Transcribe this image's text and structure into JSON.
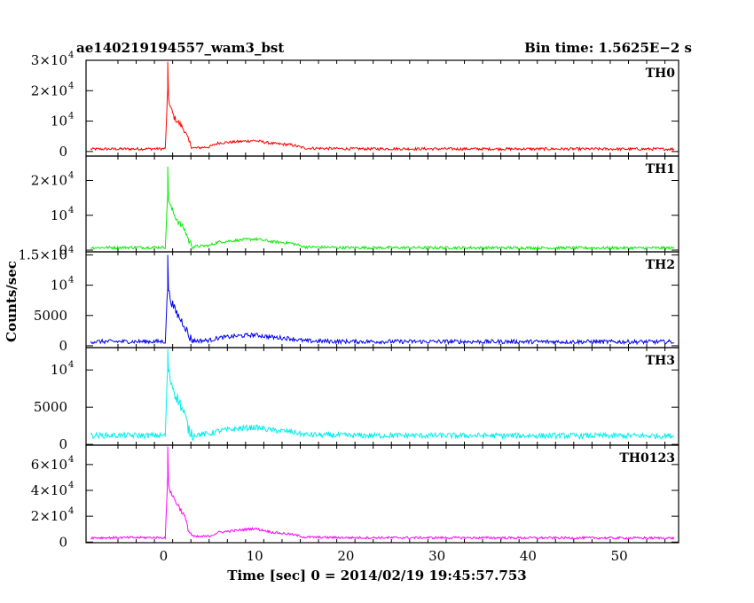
{
  "header": {
    "title": "ae140219194557_wam3_bst",
    "bin_time": "Bin time: 1.5625E−2 s"
  },
  "axes": {
    "xlabel": "Time [sec] 0 = 2014/02/19 19:45:57.753",
    "ylabel": "Counts/sec"
  },
  "chart_data": {
    "type": "line",
    "title": "ae140219194557_wam3_bst",
    "xlabel": "Time [sec] 0 = 2014/02/19 19:45:57.753",
    "ylabel": "Counts/sec",
    "xlim": [
      -8.5,
      56.5
    ],
    "x_ticks": [
      0,
      10,
      20,
      30,
      40,
      50
    ],
    "bin_time_s": 0.015625,
    "data_range": [
      -8,
      56
    ],
    "panels": [
      {
        "name": "TH0",
        "color": "#ff0000",
        "ylim": [
          -1500,
          30000
        ],
        "ticks": [
          {
            "v": 0,
            "m": "0"
          },
          {
            "v": 10000,
            "m": "10",
            "e": "4"
          },
          {
            "v": 20000,
            "m": "2×10",
            "e": "4"
          },
          {
            "v": 30000,
            "m": "3×10",
            "e": "4"
          }
        ],
        "profile": [
          [
            -8,
            800
          ],
          [
            0.2,
            900
          ],
          [
            0.45,
            20000
          ],
          [
            0.7,
            15000
          ],
          [
            1.2,
            11000
          ],
          [
            1.8,
            9000
          ],
          [
            2.3,
            7000
          ],
          [
            2.8,
            3000
          ],
          [
            3.3,
            1100
          ],
          [
            5,
            1500
          ],
          [
            6,
            2800
          ],
          [
            8,
            3200
          ],
          [
            10,
            3600
          ],
          [
            12,
            2600
          ],
          [
            14,
            2200
          ],
          [
            15.5,
            1100
          ],
          [
            20,
            900
          ],
          [
            56,
            800
          ]
        ],
        "noise": 900,
        "peak": [
          0.5,
          29500
        ]
      },
      {
        "name": "TH1",
        "color": "#00ee00",
        "ylim": [
          -500,
          27000
        ],
        "ticks": [
          {
            "v": 0,
            "m": "0"
          },
          {
            "v": 10000,
            "m": "10",
            "e": "4"
          },
          {
            "v": 20000,
            "m": "2×10",
            "e": "4"
          }
        ],
        "profile": [
          [
            -8,
            700
          ],
          [
            0.2,
            800
          ],
          [
            0.45,
            16000
          ],
          [
            0.7,
            13000
          ],
          [
            1.2,
            10000
          ],
          [
            1.8,
            7500
          ],
          [
            2.3,
            6000
          ],
          [
            2.8,
            2500
          ],
          [
            3.3,
            1000
          ],
          [
            5,
            1300
          ],
          [
            6,
            2300
          ],
          [
            8,
            2800
          ],
          [
            10,
            3200
          ],
          [
            12,
            2400
          ],
          [
            14,
            2000
          ],
          [
            15.5,
            900
          ],
          [
            20,
            700
          ],
          [
            56,
            600
          ]
        ],
        "noise": 800,
        "peak": [
          0.5,
          24000
        ]
      },
      {
        "name": "TH2",
        "color": "#0000ee",
        "ylim": [
          -300,
          15500
        ],
        "ticks": [
          {
            "v": 0,
            "m": "0"
          },
          {
            "v": 5000,
            "m": "5000"
          },
          {
            "v": 10000,
            "m": "10",
            "e": "4"
          },
          {
            "v": 15000,
            "m": "1.5×10",
            "e": "4"
          }
        ],
        "profile": [
          [
            -8,
            700
          ],
          [
            0.2,
            700
          ],
          [
            0.45,
            10000
          ],
          [
            0.7,
            8000
          ],
          [
            1.2,
            6000
          ],
          [
            1.8,
            4500
          ],
          [
            2.3,
            3500
          ],
          [
            2.8,
            1500
          ],
          [
            3.3,
            800
          ],
          [
            5,
            900
          ],
          [
            6,
            1300
          ],
          [
            8,
            1600
          ],
          [
            10,
            1800
          ],
          [
            12,
            1400
          ],
          [
            14,
            1200
          ],
          [
            15.5,
            800
          ],
          [
            20,
            700
          ],
          [
            56,
            650
          ]
        ],
        "noise": 700,
        "peak": [
          0.5,
          15000
        ]
      },
      {
        "name": "TH3",
        "color": "#00eeee",
        "ylim": [
          -100,
          13000
        ],
        "ticks": [
          {
            "v": 0,
            "m": "0"
          },
          {
            "v": 5000,
            "m": "5000"
          },
          {
            "v": 10000,
            "m": "10",
            "e": "4"
          }
        ],
        "profile": [
          [
            -8,
            1200
          ],
          [
            0.2,
            1200
          ],
          [
            0.45,
            10500
          ],
          [
            0.7,
            9000
          ],
          [
            1.2,
            7000
          ],
          [
            1.8,
            5500
          ],
          [
            2.3,
            4000
          ],
          [
            2.8,
            1800
          ],
          [
            3.3,
            1300
          ],
          [
            5,
            1400
          ],
          [
            6,
            1800
          ],
          [
            8,
            2100
          ],
          [
            10,
            2300
          ],
          [
            12,
            1900
          ],
          [
            14,
            1700
          ],
          [
            15.5,
            1300
          ],
          [
            20,
            1200
          ],
          [
            56,
            1150
          ]
        ],
        "noise": 750,
        "peak": [
          0.5,
          12800
        ]
      },
      {
        "name": "TH0123",
        "color": "#ff00ff",
        "ylim": [
          -500,
          75000
        ],
        "ticks": [
          {
            "v": 0,
            "m": "0"
          },
          {
            "v": 20000,
            "m": "2×10",
            "e": "4"
          },
          {
            "v": 40000,
            "m": "4×10",
            "e": "4"
          },
          {
            "v": 60000,
            "m": "6×10",
            "e": "4"
          }
        ],
        "profile": [
          [
            -8,
            3300
          ],
          [
            0.2,
            3500
          ],
          [
            0.45,
            50000
          ],
          [
            0.7,
            40000
          ],
          [
            1.2,
            33000
          ],
          [
            1.8,
            26000
          ],
          [
            2.3,
            20000
          ],
          [
            2.8,
            8000
          ],
          [
            3.3,
            4000
          ],
          [
            5,
            4500
          ],
          [
            6,
            7500
          ],
          [
            8,
            9000
          ],
          [
            10,
            10500
          ],
          [
            12,
            7500
          ],
          [
            14,
            6000
          ],
          [
            15.5,
            3800
          ],
          [
            20,
            3400
          ],
          [
            56,
            3100
          ]
        ],
        "noise": 1800,
        "peak": [
          0.5,
          74000
        ]
      }
    ]
  }
}
